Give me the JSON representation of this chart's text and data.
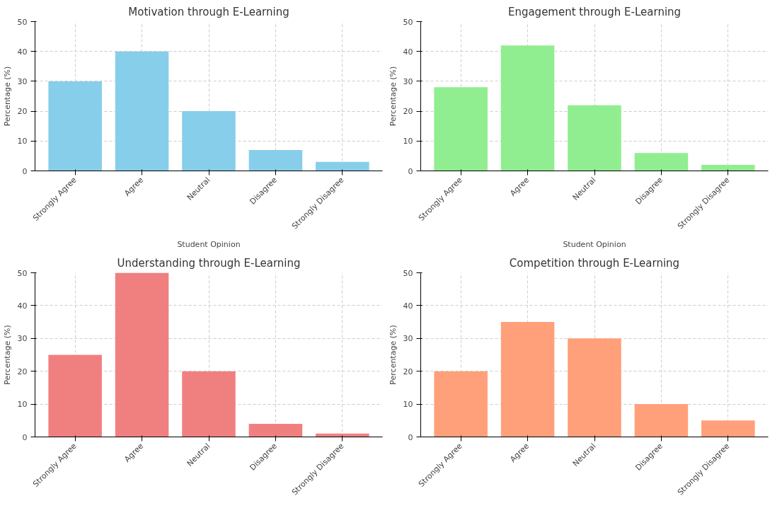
{
  "chart_data": [
    {
      "type": "bar",
      "title": "Motivation through E-Learning",
      "xlabel": "Student Opinion",
      "ylabel": "Percentage (%)",
      "categories": [
        "Strongly Agree",
        "Agree",
        "Neutral",
        "Disagree",
        "Strongly Disagree"
      ],
      "values": [
        30,
        40,
        20,
        7,
        3
      ],
      "color": "#87ceeb",
      "ylim": [
        0,
        50
      ],
      "yticks": [
        0,
        10,
        20,
        30,
        40,
        50
      ],
      "grid": true
    },
    {
      "type": "bar",
      "title": "Engagement through E-Learning",
      "xlabel": "Student Opinion",
      "ylabel": "Percentage (%)",
      "categories": [
        "Strongly Agree",
        "Agree",
        "Neutral",
        "Disagree",
        "Strongly Disagree"
      ],
      "values": [
        28,
        42,
        22,
        6,
        2
      ],
      "color": "#90ee90",
      "ylim": [
        0,
        50
      ],
      "yticks": [
        0,
        10,
        20,
        30,
        40,
        50
      ],
      "grid": true
    },
    {
      "type": "bar",
      "title": "Understanding through E-Learning",
      "ylabel": "Percentage (%)",
      "categories": [
        "Strongly Agree",
        "Agree",
        "Neutral",
        "Disagree",
        "Strongly Disagree"
      ],
      "values": [
        25,
        50,
        20,
        4,
        1
      ],
      "color": "#f08080",
      "ylim": [
        0,
        50
      ],
      "yticks": [
        0,
        10,
        20,
        30,
        40,
        50
      ],
      "grid": true
    },
    {
      "type": "bar",
      "title": "Competition through E-Learning",
      "ylabel": "Percentage (%)",
      "categories": [
        "Strongly Agree",
        "Agree",
        "Neutral",
        "Disagree",
        "Strongly Disagree"
      ],
      "values": [
        20,
        35,
        30,
        10,
        5
      ],
      "color": "#ffa07a",
      "ylim": [
        0,
        50
      ],
      "yticks": [
        0,
        10,
        20,
        30,
        40,
        50
      ],
      "grid": true
    }
  ]
}
